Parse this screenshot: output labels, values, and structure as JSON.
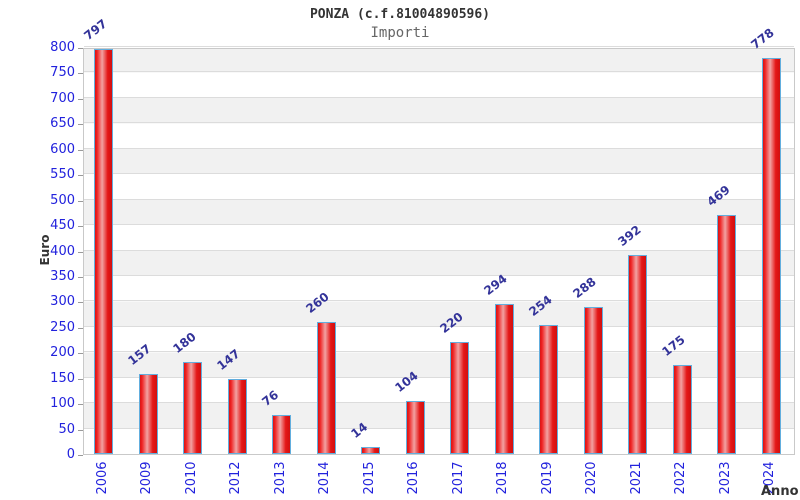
{
  "header": {
    "title": "PONZA (c.f.81004890596)",
    "subtitle": "Importi"
  },
  "chart_data": {
    "type": "bar",
    "title": "PONZA (c.f.81004890596)",
    "subtitle": "Importi",
    "xlabel": "Anno",
    "ylabel": "Euro",
    "categories": [
      "2006",
      "2009",
      "2010",
      "2012",
      "2013",
      "2014",
      "2015",
      "2016",
      "2017",
      "2018",
      "2019",
      "2020",
      "2021",
      "2022",
      "2023",
      "2024"
    ],
    "values": [
      797,
      157,
      180,
      147,
      76,
      260,
      14,
      104,
      220,
      294,
      254,
      288,
      392,
      175,
      469,
      778
    ],
    "ylim": [
      0,
      800
    ],
    "y_ticks": [
      0,
      50,
      100,
      150,
      200,
      250,
      300,
      350,
      400,
      450,
      500,
      550,
      600,
      650,
      700,
      750,
      800
    ],
    "grid": "horizontal, alternating white/gray 50-unit bands",
    "legend": "none",
    "colors": {
      "bar_fill_edge": "#e01515",
      "bar_fill_center": "#f2a2a2",
      "bar_border": "#62aede",
      "axis_tick_label": "#2222dd",
      "value_label": "#333399",
      "title": "#333333",
      "subtitle": "#666666",
      "axis_title": "#333333",
      "band": "#f1f1f1",
      "gridline": "#dcdcdc",
      "plot_border": "#c9c9c9"
    }
  }
}
